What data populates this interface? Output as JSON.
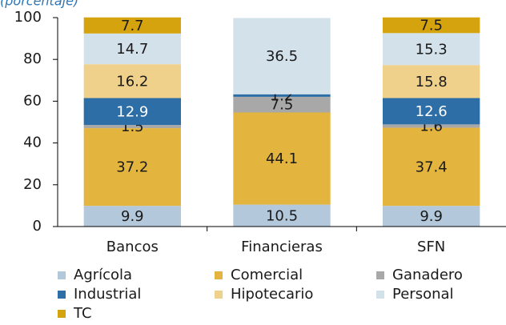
{
  "chart_data": {
    "type": "stacked_bar",
    "subtitle": "(porcentaje)",
    "categories": [
      "Bancos",
      "Financieras",
      "SFN"
    ],
    "series": [
      {
        "name": "Agrícola",
        "color": "#b4c8dc",
        "values": [
          9.9,
          10.5,
          9.9
        ]
      },
      {
        "name": "Comercial",
        "color": "#e3b53e",
        "values": [
          37.2,
          44.1,
          37.4
        ]
      },
      {
        "name": "Ganadero",
        "color": "#a8a8a8",
        "values": [
          1.5,
          7.5,
          1.6
        ]
      },
      {
        "name": "Industrial",
        "color": "#2e6ea6",
        "values": [
          12.9,
          1.2,
          12.6
        ]
      },
      {
        "name": "Hipotecario",
        "color": "#efd18c",
        "values": [
          16.2,
          null,
          15.8
        ]
      },
      {
        "name": "Personal",
        "color": "#d3e1eb",
        "values": [
          14.7,
          36.5,
          15.3
        ]
      },
      {
        "name": "TC",
        "color": "#d5a30e",
        "values": [
          7.7,
          null,
          7.5
        ]
      }
    ],
    "ylim": [
      0,
      100
    ],
    "yticks": [
      0,
      20,
      40,
      60,
      80,
      100
    ],
    "legend": "bottom"
  }
}
